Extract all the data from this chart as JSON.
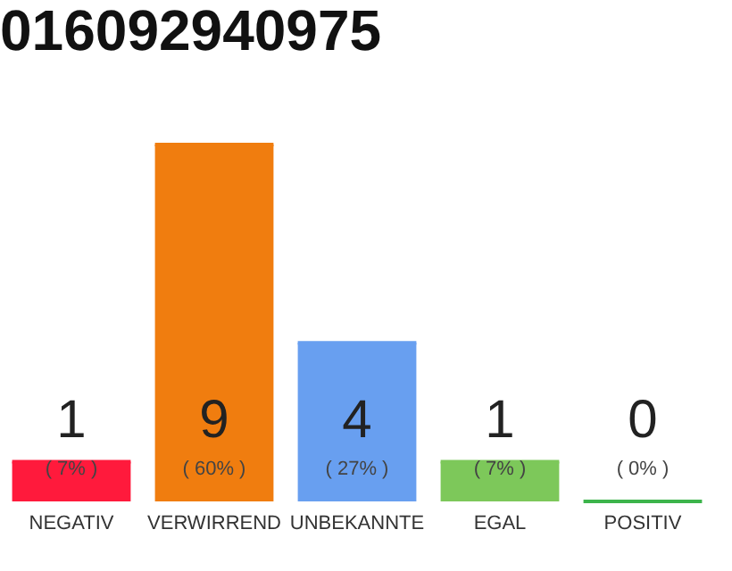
{
  "chart_data": {
    "type": "bar",
    "title": "016092940975",
    "categories": [
      "NEGATIV",
      "VERWIRREND",
      "UNBEKANNTE",
      "EGAL",
      "POSITIV"
    ],
    "values": [
      1,
      9,
      4,
      1,
      0
    ],
    "colors": [
      "#ff1a3c",
      "#f07d0f",
      "#689ff0",
      "#7dc85a",
      "#3cb44b"
    ],
    "ylim": [
      0,
      9
    ],
    "tick_labels": "x",
    "grid": false,
    "data_labels": true,
    "annotations": [
      "( 7% )",
      "( 60% )",
      "( 27% )",
      "( 7% )",
      "( 0% )"
    ]
  }
}
